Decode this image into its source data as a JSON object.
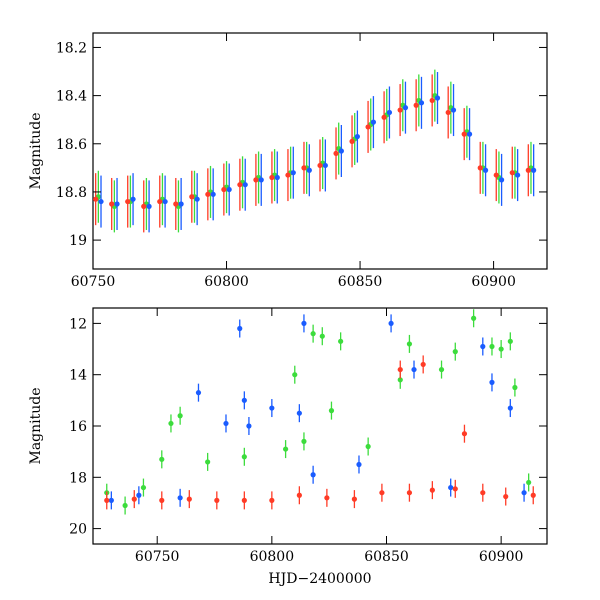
{
  "chart_data": [
    {
      "type": "scatter",
      "panel": "top",
      "title": "",
      "xlabel": "",
      "ylabel": "Magnitude",
      "xlim": [
        60750,
        60920
      ],
      "ylim": [
        19.12,
        18.14
      ],
      "y_inverted": true,
      "grid": false,
      "legend": "none",
      "x_ticks": [
        60750,
        60800,
        60850,
        60900
      ],
      "y_ticks": [
        18.2,
        18.4,
        18.6,
        18.8,
        19
      ],
      "y_tick_labels": [
        "18.2",
        "18.4",
        "18.6",
        "18.8",
        "19"
      ],
      "series": [
        {
          "color": "#3cdc3c",
          "points": [
            [
              60752,
              18.82
            ],
            [
              60758,
              18.86
            ],
            [
              60764,
              18.84
            ],
            [
              60770,
              18.85
            ],
            [
              60776,
              18.83
            ],
            [
              60782,
              18.86
            ],
            [
              60788,
              18.82
            ],
            [
              60794,
              18.8
            ],
            [
              60800,
              18.78
            ],
            [
              60806,
              18.76
            ],
            [
              60812,
              18.74
            ],
            [
              60818,
              18.73
            ],
            [
              60824,
              18.72
            ],
            [
              60830,
              18.7
            ],
            [
              60836,
              18.68
            ],
            [
              60842,
              18.62
            ],
            [
              60848,
              18.58
            ],
            [
              60854,
              18.52
            ],
            [
              60860,
              18.48
            ],
            [
              60866,
              18.44
            ],
            [
              60872,
              18.42
            ],
            [
              60878,
              18.4
            ],
            [
              60884,
              18.45
            ],
            [
              60890,
              18.55
            ],
            [
              60896,
              18.7
            ],
            [
              60902,
              18.74
            ],
            [
              60908,
              18.72
            ],
            [
              60914,
              18.7
            ]
          ]
        },
        {
          "color": "#1a5cff",
          "points": [
            [
              60753,
              18.84
            ],
            [
              60759,
              18.85
            ],
            [
              60765,
              18.83
            ],
            [
              60771,
              18.86
            ],
            [
              60777,
              18.84
            ],
            [
              60783,
              18.85
            ],
            [
              60789,
              18.83
            ],
            [
              60795,
              18.81
            ],
            [
              60801,
              18.79
            ],
            [
              60807,
              18.77
            ],
            [
              60813,
              18.75
            ],
            [
              60819,
              18.74
            ],
            [
              60825,
              18.72
            ],
            [
              60831,
              18.71
            ],
            [
              60837,
              18.69
            ],
            [
              60843,
              18.63
            ],
            [
              60849,
              18.57
            ],
            [
              60855,
              18.51
            ],
            [
              60861,
              18.47
            ],
            [
              60867,
              18.45
            ],
            [
              60873,
              18.43
            ],
            [
              60879,
              18.41
            ],
            [
              60885,
              18.46
            ],
            [
              60891,
              18.56
            ],
            [
              60897,
              18.71
            ],
            [
              60903,
              18.75
            ],
            [
              60909,
              18.73
            ],
            [
              60915,
              18.71
            ]
          ]
        },
        {
          "color": "#ff3b26",
          "points": [
            [
              60751,
              18.83
            ],
            [
              60757,
              18.85
            ],
            [
              60763,
              18.84
            ],
            [
              60769,
              18.86
            ],
            [
              60775,
              18.84
            ],
            [
              60781,
              18.85
            ],
            [
              60787,
              18.82
            ],
            [
              60793,
              18.81
            ],
            [
              60799,
              18.79
            ],
            [
              60805,
              18.77
            ],
            [
              60811,
              18.75
            ],
            [
              60817,
              18.74
            ],
            [
              60823,
              18.73
            ],
            [
              60829,
              18.7
            ],
            [
              60835,
              18.69
            ],
            [
              60841,
              18.64
            ],
            [
              60847,
              18.59
            ],
            [
              60853,
              18.53
            ],
            [
              60859,
              18.49
            ],
            [
              60865,
              18.46
            ],
            [
              60871,
              18.44
            ],
            [
              60877,
              18.42
            ],
            [
              60883,
              18.47
            ],
            [
              60889,
              18.56
            ],
            [
              60895,
              18.7
            ],
            [
              60901,
              18.73
            ],
            [
              60907,
              18.72
            ],
            [
              60913,
              18.71
            ]
          ]
        }
      ]
    },
    {
      "type": "scatter",
      "panel": "bottom",
      "title": "",
      "xlabel": "HJD−2400000",
      "ylabel": "Magnitude",
      "xlim": [
        60722,
        60920
      ],
      "ylim": [
        20.6,
        11.4
      ],
      "y_inverted": true,
      "grid": false,
      "legend": "none",
      "x_ticks": [
        60750,
        60800,
        60850,
        60900
      ],
      "y_ticks": [
        12,
        14,
        16,
        18,
        20
      ],
      "series": [
        {
          "color": "#3cdc3c",
          "points": [
            [
              60728,
              18.6
            ],
            [
              60736,
              19.1
            ],
            [
              60744,
              18.4
            ],
            [
              60752,
              17.3
            ],
            [
              60756,
              15.9
            ],
            [
              60760,
              15.6
            ],
            [
              60772,
              17.4
            ],
            [
              60788,
              17.2
            ],
            [
              60806,
              16.9
            ],
            [
              60810,
              14.0
            ],
            [
              60814,
              16.6
            ],
            [
              60818,
              12.4
            ],
            [
              60822,
              12.5
            ],
            [
              60826,
              15.4
            ],
            [
              60830,
              12.7
            ],
            [
              60842,
              16.8
            ],
            [
              60856,
              14.2
            ],
            [
              60860,
              12.8
            ],
            [
              60874,
              13.8
            ],
            [
              60880,
              13.1
            ],
            [
              60888,
              11.8
            ],
            [
              60896,
              12.9
            ],
            [
              60900,
              13.0
            ],
            [
              60904,
              12.7
            ],
            [
              60906,
              14.5
            ],
            [
              60912,
              18.2
            ]
          ]
        },
        {
          "color": "#1a5cff",
          "points": [
            [
              60730,
              18.9
            ],
            [
              60742,
              18.7
            ],
            [
              60760,
              18.8
            ],
            [
              60768,
              14.7
            ],
            [
              60780,
              15.9
            ],
            [
              60786,
              12.2
            ],
            [
              60788,
              15.0
            ],
            [
              60790,
              16.0
            ],
            [
              60800,
              15.3
            ],
            [
              60812,
              15.5
            ],
            [
              60814,
              12.0
            ],
            [
              60818,
              17.9
            ],
            [
              60838,
              17.5
            ],
            [
              60852,
              12.0
            ],
            [
              60862,
              13.8
            ],
            [
              60878,
              18.4
            ],
            [
              60892,
              12.9
            ],
            [
              60896,
              14.3
            ],
            [
              60904,
              15.3
            ],
            [
              60910,
              18.6
            ]
          ]
        },
        {
          "color": "#ff3b26",
          "points": [
            [
              60728,
              18.9
            ],
            [
              60740,
              18.85
            ],
            [
              60752,
              18.9
            ],
            [
              60764,
              18.85
            ],
            [
              60776,
              18.9
            ],
            [
              60788,
              18.9
            ],
            [
              60800,
              18.9
            ],
            [
              60812,
              18.7
            ],
            [
              60824,
              18.8
            ],
            [
              60836,
              18.85
            ],
            [
              60848,
              18.6
            ],
            [
              60856,
              13.8
            ],
            [
              60860,
              18.6
            ],
            [
              60866,
              13.6
            ],
            [
              60870,
              18.5
            ],
            [
              60880,
              18.45
            ],
            [
              60884,
              16.3
            ],
            [
              60892,
              18.6
            ],
            [
              60902,
              18.75
            ],
            [
              60914,
              18.7
            ]
          ]
        }
      ]
    }
  ]
}
